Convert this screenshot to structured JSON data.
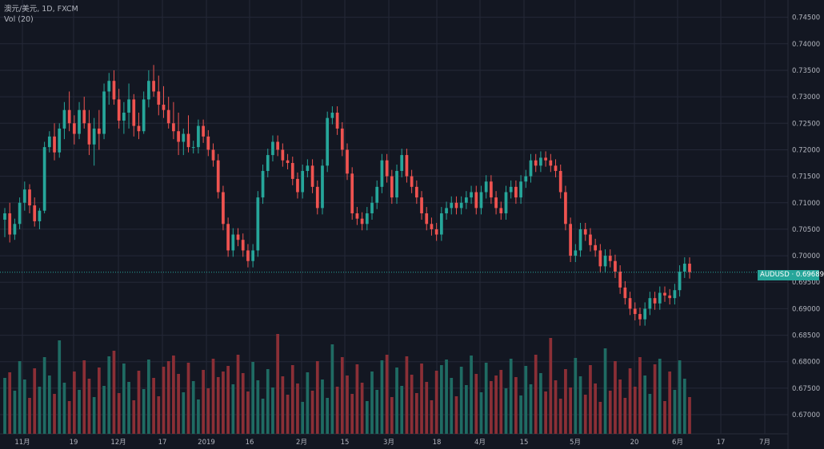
{
  "legend": {
    "symbol_line": "澳元/美元, 1D, FXCM",
    "volume_line": "Vol (20)"
  },
  "price_badge": {
    "symbol": "AUDUSD",
    "separator": "·",
    "price": "0.69689"
  },
  "colors": {
    "background": "#131722",
    "up": "#26a69a",
    "down": "#ef5350",
    "up_volume": "#1f6b63",
    "down_volume": "#8b2f36",
    "grid": "#242838",
    "text": "#b2b5be"
  },
  "chart_data": {
    "type": "candlestick",
    "y_axis_ticks": [
      "0.74500",
      "0.74000",
      "0.73500",
      "0.73000",
      "0.72500",
      "0.72000",
      "0.71500",
      "0.71000",
      "0.70500",
      "0.70000",
      "0.69500",
      "0.69000",
      "0.68500",
      "0.68000",
      "0.67500",
      "0.67000"
    ],
    "x_axis_ticks": [
      "11月",
      "19",
      "12月",
      "17",
      "2019",
      "16",
      "2月",
      "15",
      "3月",
      "18",
      "4月",
      "15",
      "5月",
      "20",
      "6月",
      "17",
      "7月"
    ],
    "ylim": [
      0.6685,
      0.746
    ],
    "current_price": 0.69689,
    "candles": [
      [
        0.7068,
        0.709,
        0.7035,
        0.708
      ],
      [
        0.708,
        0.71,
        0.7025,
        0.704
      ],
      [
        0.704,
        0.707,
        0.703,
        0.706
      ],
      [
        0.706,
        0.711,
        0.705,
        0.71
      ],
      [
        0.71,
        0.714,
        0.7085,
        0.7125
      ],
      [
        0.7125,
        0.7135,
        0.708,
        0.7095
      ],
      [
        0.7095,
        0.711,
        0.7055,
        0.7065
      ],
      [
        0.7065,
        0.709,
        0.705,
        0.7085
      ],
      [
        0.7085,
        0.7215,
        0.708,
        0.7205
      ],
      [
        0.7205,
        0.7235,
        0.7195,
        0.7225
      ],
      [
        0.7225,
        0.725,
        0.718,
        0.7195
      ],
      [
        0.7195,
        0.725,
        0.7185,
        0.724
      ],
      [
        0.724,
        0.729,
        0.722,
        0.7275
      ],
      [
        0.7275,
        0.731,
        0.7235,
        0.725
      ],
      [
        0.725,
        0.7265,
        0.721,
        0.723
      ],
      [
        0.723,
        0.729,
        0.722,
        0.7275
      ],
      [
        0.7275,
        0.73,
        0.724,
        0.725
      ],
      [
        0.725,
        0.7275,
        0.719,
        0.721
      ],
      [
        0.721,
        0.726,
        0.717,
        0.724
      ],
      [
        0.724,
        0.7275,
        0.72,
        0.723
      ],
      [
        0.723,
        0.7325,
        0.722,
        0.731
      ],
      [
        0.731,
        0.7345,
        0.7285,
        0.733
      ],
      [
        0.733,
        0.735,
        0.7285,
        0.7295
      ],
      [
        0.7295,
        0.7315,
        0.724,
        0.7255
      ],
      [
        0.7255,
        0.729,
        0.723,
        0.727
      ],
      [
        0.727,
        0.7325,
        0.724,
        0.7295
      ],
      [
        0.7295,
        0.7305,
        0.7225,
        0.7245
      ],
      [
        0.7245,
        0.727,
        0.722,
        0.7235
      ],
      [
        0.7235,
        0.731,
        0.723,
        0.7295
      ],
      [
        0.7295,
        0.735,
        0.728,
        0.733
      ],
      [
        0.733,
        0.736,
        0.73,
        0.731
      ],
      [
        0.731,
        0.734,
        0.7265,
        0.7285
      ],
      [
        0.7285,
        0.732,
        0.726,
        0.7275
      ],
      [
        0.7275,
        0.73,
        0.724,
        0.725
      ],
      [
        0.725,
        0.729,
        0.722,
        0.7235
      ],
      [
        0.7235,
        0.727,
        0.719,
        0.7215
      ],
      [
        0.7215,
        0.724,
        0.719,
        0.723
      ],
      [
        0.723,
        0.7265,
        0.7195,
        0.7205
      ]
    ],
    "note_volume_series": "volume bars shown beneath price pane, colored by candle direction"
  }
}
